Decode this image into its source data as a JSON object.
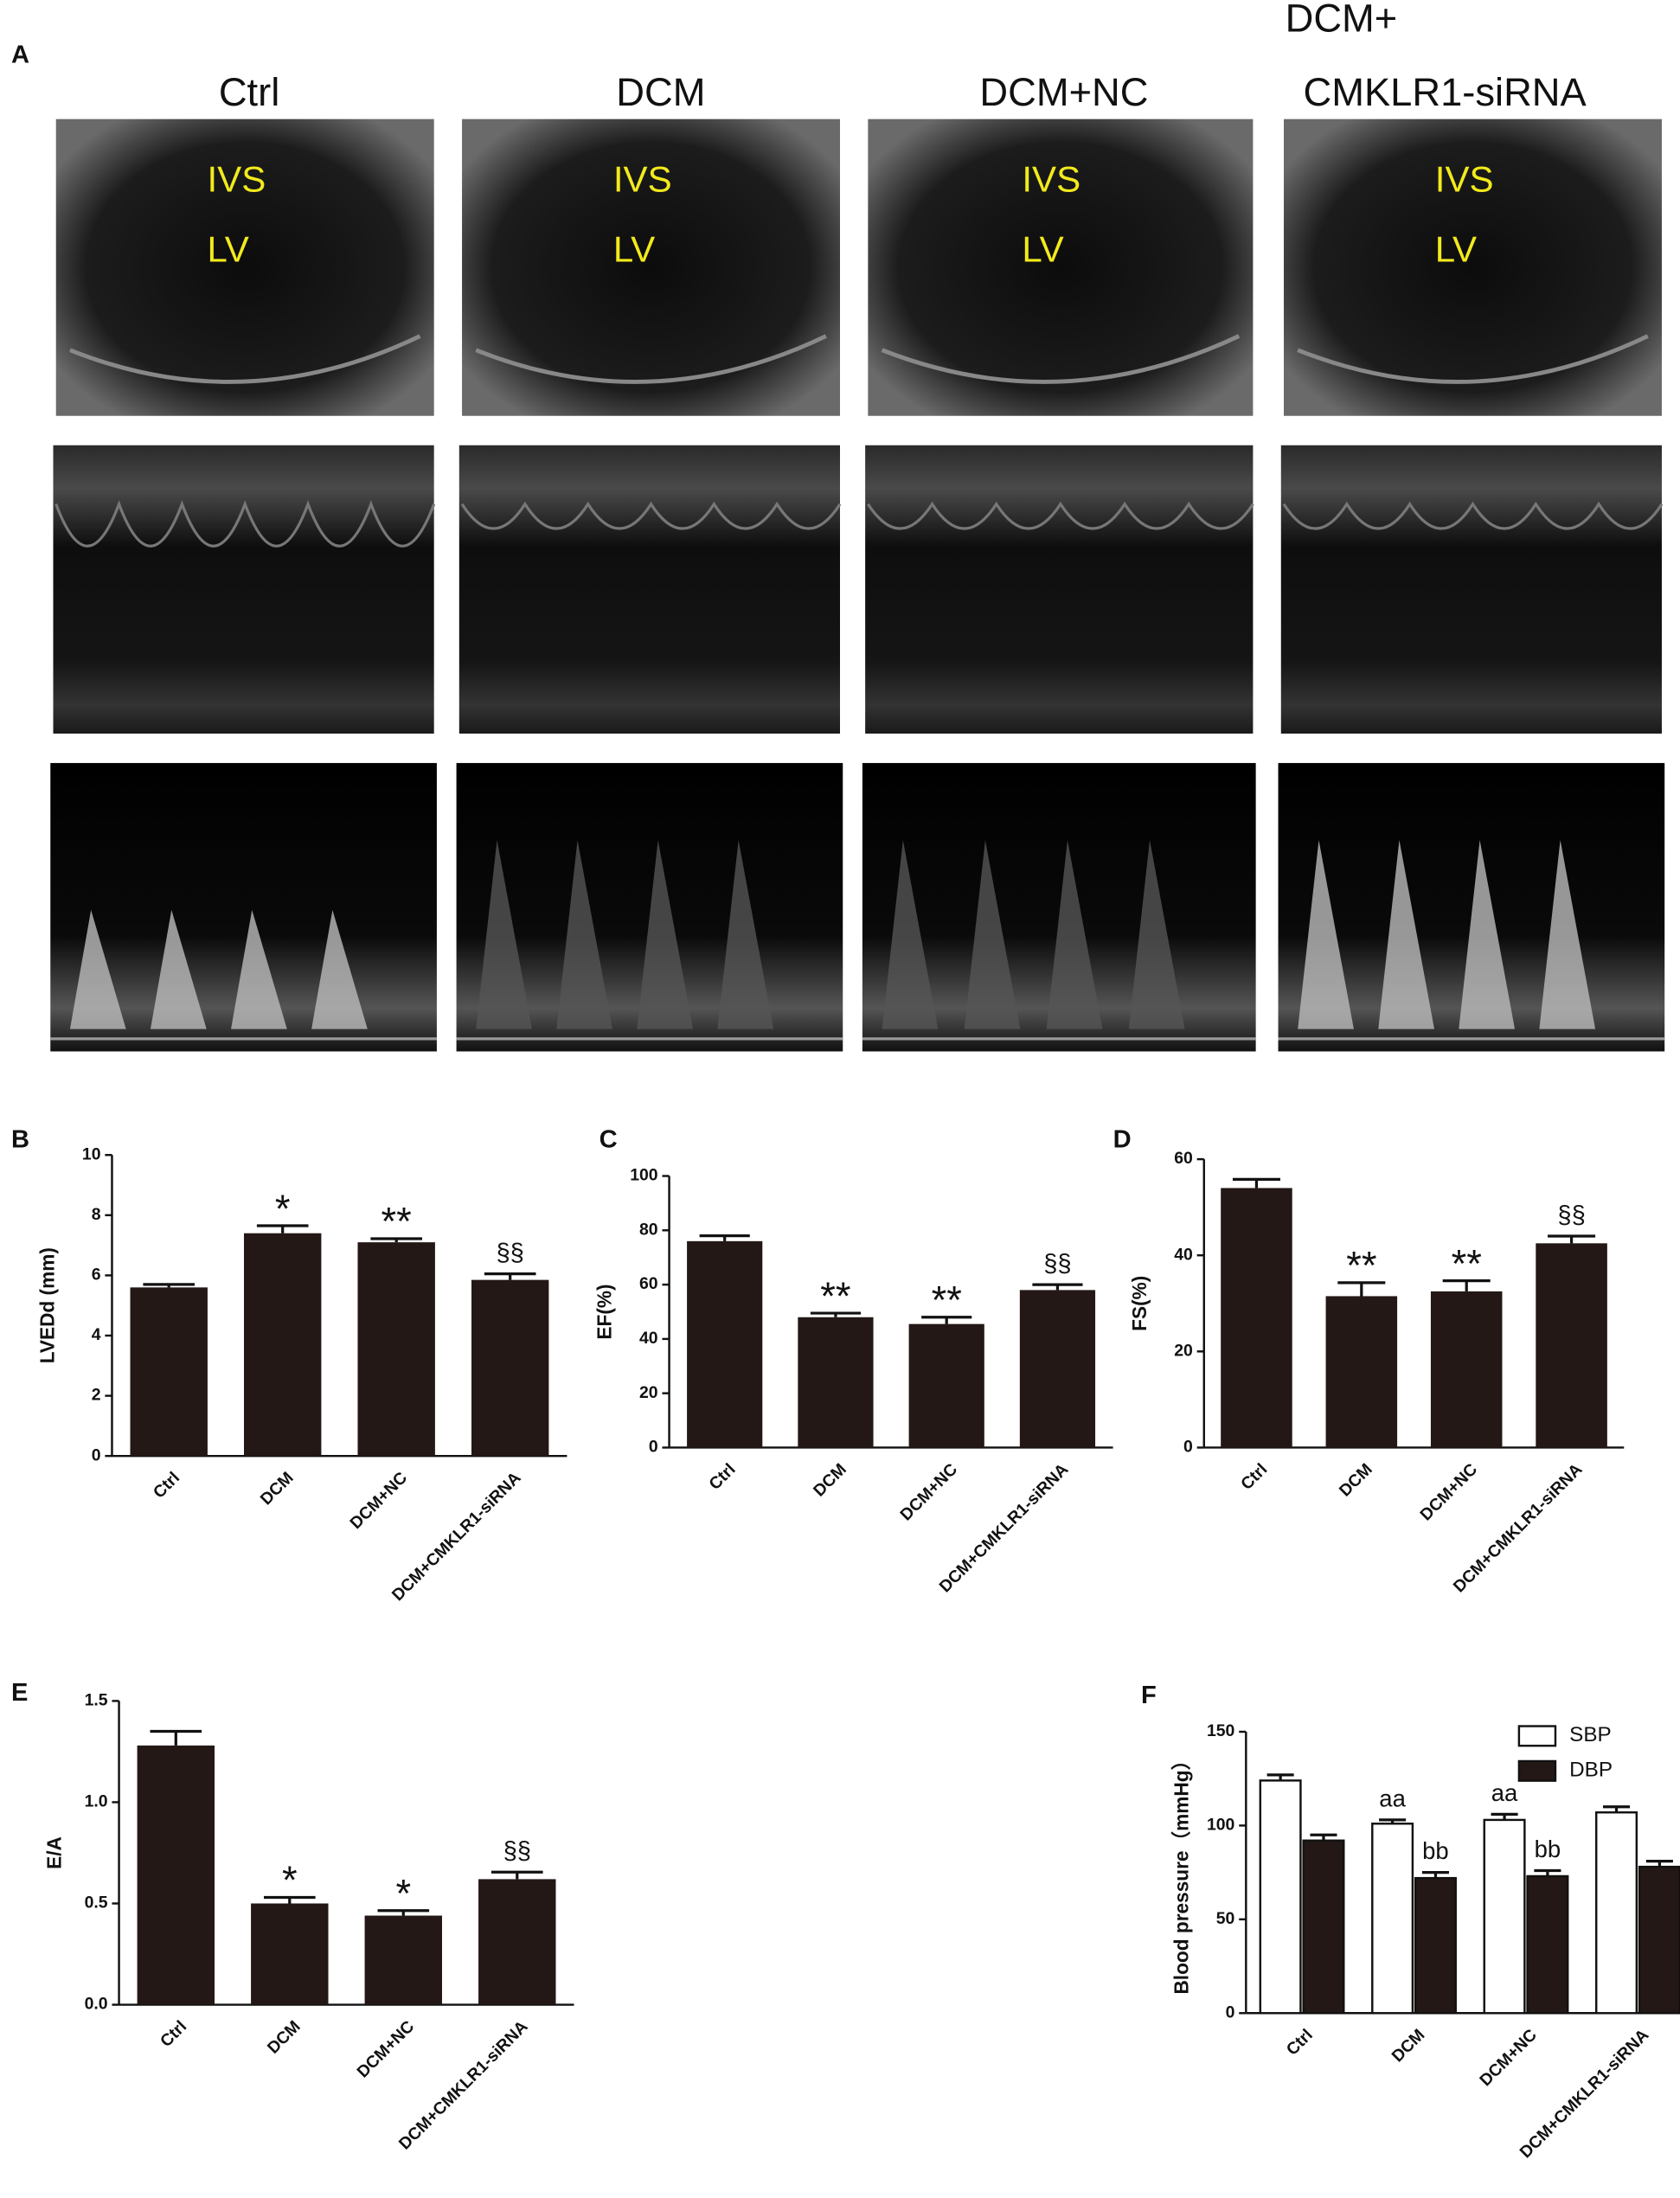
{
  "panel_a": {
    "panel": "A",
    "columns": [
      "Ctrl",
      "DCM",
      "DCM+NC"
    ],
    "last_column": [
      "DCM+",
      "CMKLR1-siRNA"
    ],
    "image_labels": [
      "IVS",
      "LV"
    ]
  },
  "chart_data": [
    {
      "type": "bar",
      "panel": "B",
      "ylabel": "LVEDd (mm)",
      "categories": [
        "Ctrl",
        "DCM",
        "DCM+NC",
        "DCM+CMKLR1-siRNA"
      ],
      "values": [
        5.6,
        7.4,
        7.1,
        5.85
      ],
      "errors": [
        0.1,
        0.25,
        0.12,
        0.2
      ],
      "annotations": [
        null,
        "*",
        "**",
        "§§"
      ],
      "color": "#231815",
      "ylim": [
        0,
        10
      ],
      "yticks": [
        0,
        2,
        4,
        6,
        8,
        10
      ]
    },
    {
      "type": "bar",
      "panel": "C",
      "ylabel": "EF(%)",
      "categories": [
        "Ctrl",
        "DCM",
        "DCM+NC",
        "DCM+CMKLR1-siRNA"
      ],
      "values": [
        76,
        48,
        45.5,
        58
      ],
      "errors": [
        2,
        1.5,
        2.5,
        2
      ],
      "annotations": [
        null,
        "**",
        "**",
        "§§"
      ],
      "color": "#231815",
      "ylim": [
        0,
        100
      ],
      "yticks": [
        0,
        20,
        40,
        60,
        80,
        100
      ]
    },
    {
      "type": "bar",
      "panel": "D",
      "ylabel": "FS(%)",
      "categories": [
        "Ctrl",
        "DCM",
        "DCM+NC",
        "DCM+CMKLR1-siRNA"
      ],
      "values": [
        54,
        31.5,
        32.5,
        42.5
      ],
      "errors": [
        1.8,
        2.8,
        2.2,
        1.5
      ],
      "annotations": [
        null,
        "**",
        "**",
        "§§"
      ],
      "color": "#231815",
      "ylim": [
        0,
        60
      ],
      "yticks": [
        0,
        20,
        40,
        60
      ]
    },
    {
      "type": "bar",
      "panel": "E",
      "ylabel": "E/A",
      "categories": [
        "Ctrl",
        "DCM",
        "DCM+NC",
        "DCM+CMKLR1-siRNA"
      ],
      "values": [
        1.28,
        0.5,
        0.44,
        0.62
      ],
      "errors": [
        0.07,
        0.03,
        0.025,
        0.035
      ],
      "annotations": [
        null,
        "*",
        "*",
        "§§"
      ],
      "color": "#231815",
      "ylim": [
        0,
        1.5
      ],
      "yticks": [
        {
          "value": 0,
          "label": "0.0"
        },
        0.5,
        {
          "value": 1,
          "label": "1.0"
        },
        1.5
      ]
    },
    {
      "type": "grouped_bar",
      "panel": "F",
      "ylabel": "Blood pressure（mmHg）",
      "categories": [
        "Ctrl",
        "DCM",
        "DCM+NC",
        "DCM+CMKLR1-siRNA"
      ],
      "series": [
        {
          "name": "SBP",
          "color": "#ffffff",
          "values": [
            124,
            101,
            103,
            107
          ],
          "errors": [
            3,
            2,
            3,
            3
          ],
          "annotations": [
            null,
            "aa",
            "aa",
            null
          ]
        },
        {
          "name": "DBP",
          "color": "#231815",
          "values": [
            92,
            72,
            73,
            78
          ],
          "errors": [
            3,
            3,
            3,
            3
          ],
          "annotations": [
            null,
            "bb",
            "bb",
            null
          ]
        }
      ],
      "legend": "top-right",
      "ylim": [
        0,
        150
      ],
      "yticks": [
        0,
        50,
        100,
        150
      ]
    }
  ]
}
